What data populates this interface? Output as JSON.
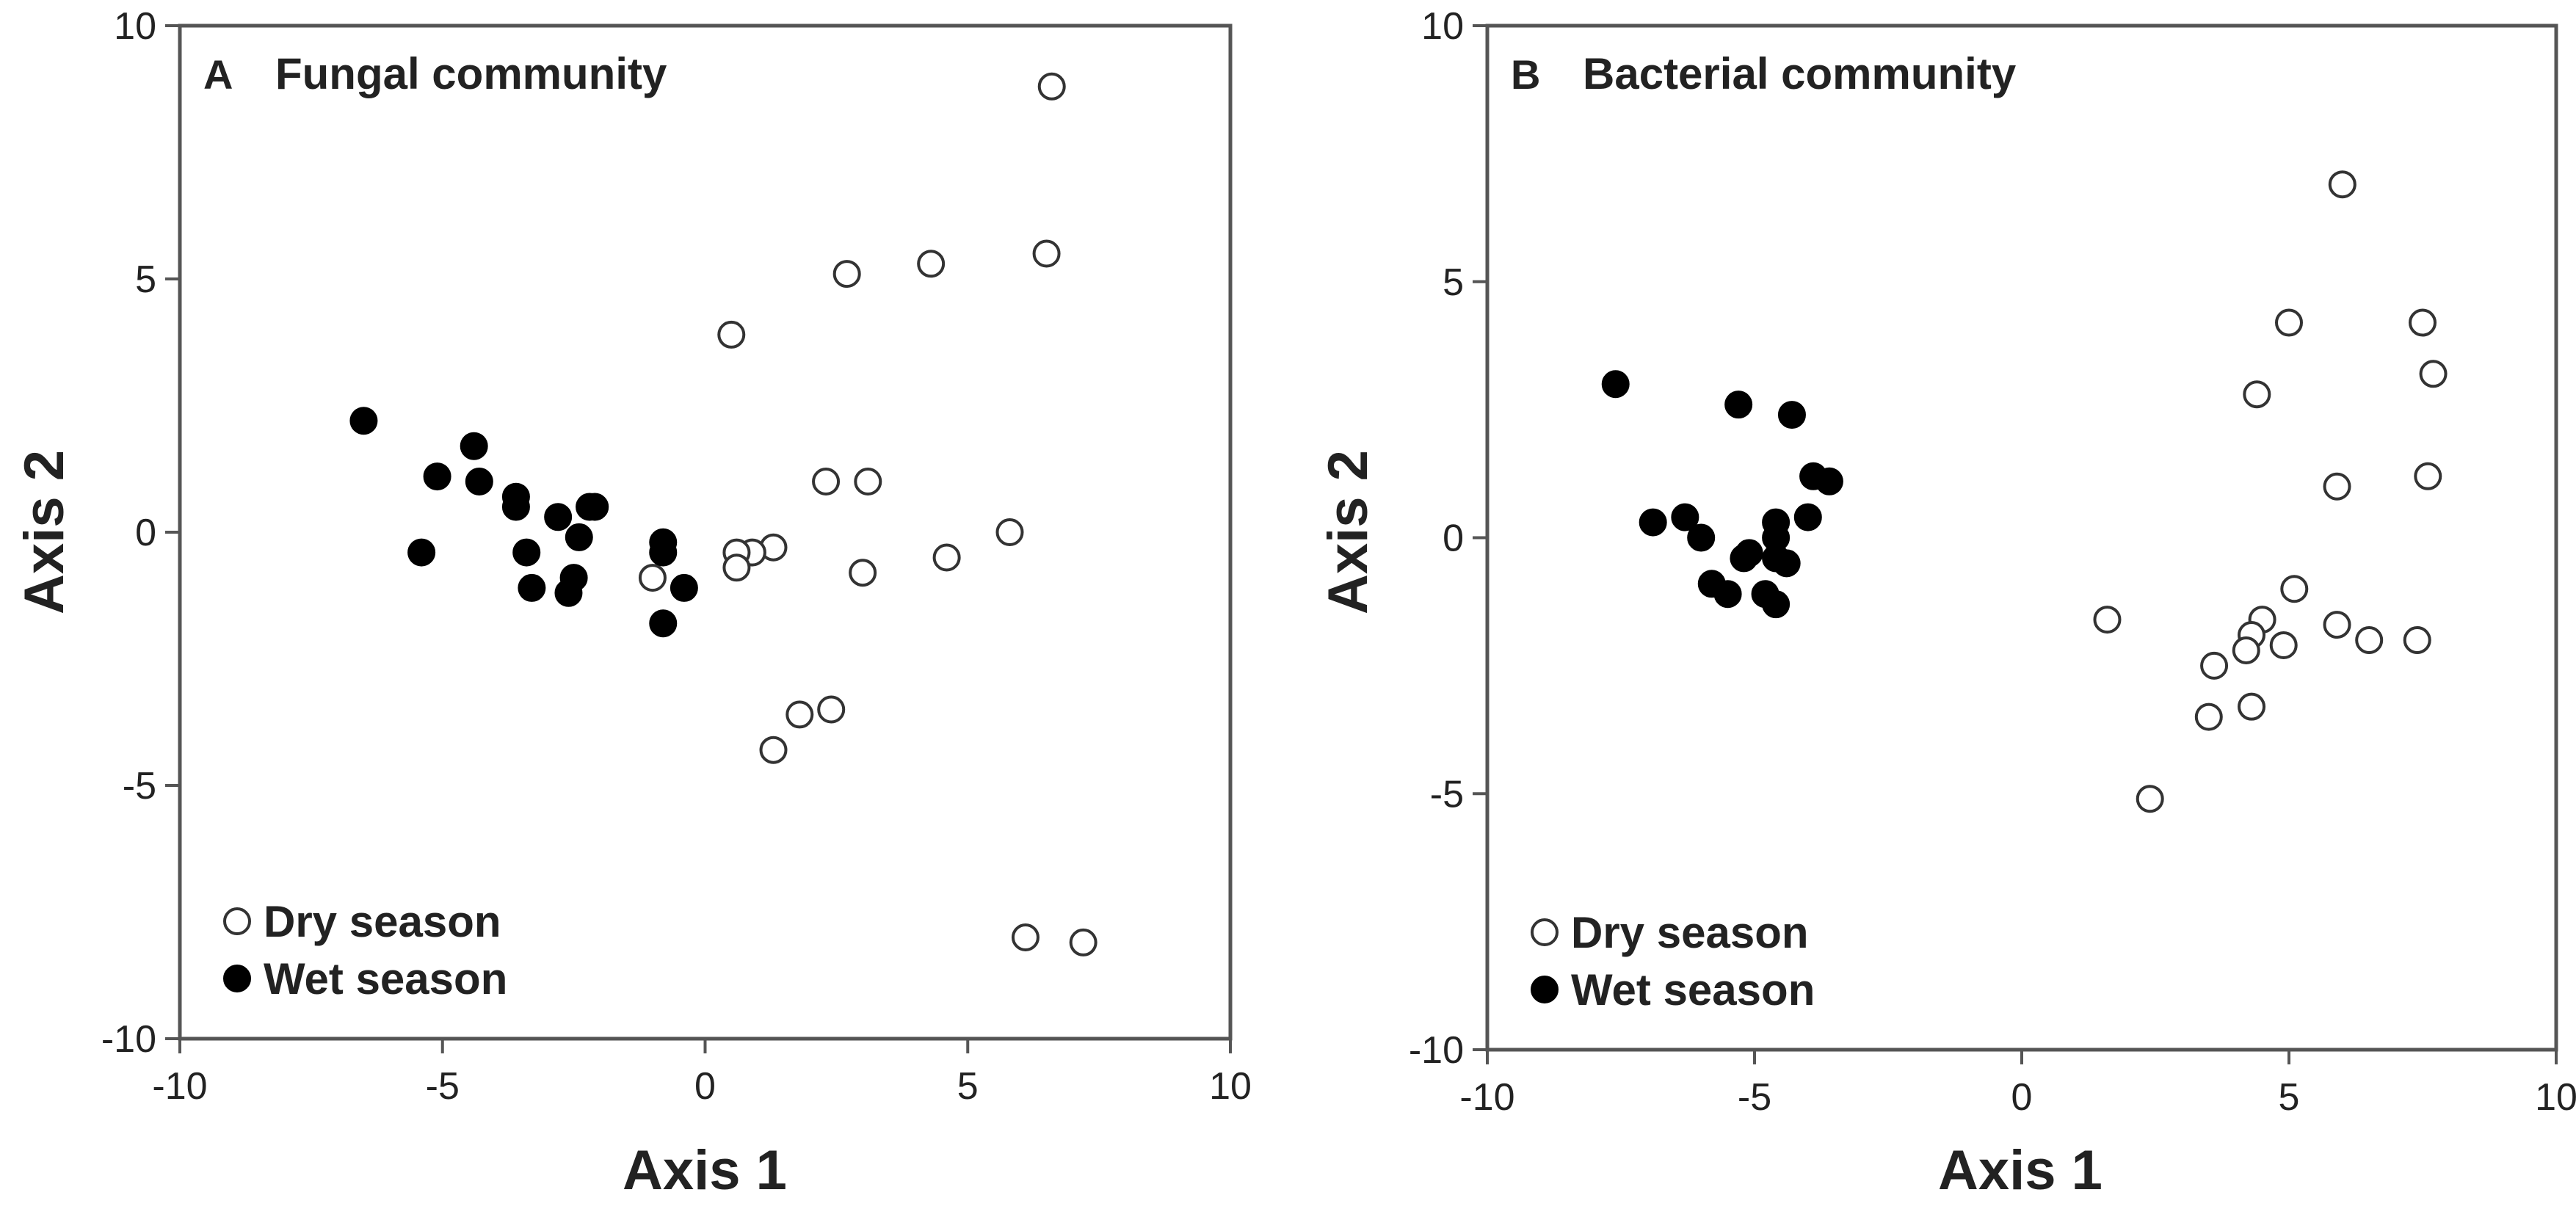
{
  "chart_data": [
    {
      "type": "scatter",
      "panel_letter": "A",
      "title": "Fungal community",
      "xlabel": "Axis 1",
      "ylabel": "Axis 2",
      "xlim": [
        -10,
        10
      ],
      "ylim": [
        -10,
        10
      ],
      "xticks": [
        -10,
        -5,
        0,
        5,
        10
      ],
      "yticks": [
        -10,
        -5,
        0,
        5,
        10
      ],
      "grid": false,
      "legend_position": "bottom-left",
      "series": [
        {
          "name": "Dry season",
          "marker": "open-circle",
          "points": [
            [
              6.6,
              8.8
            ],
            [
              6.5,
              5.5
            ],
            [
              4.3,
              5.3
            ],
            [
              2.7,
              5.1
            ],
            [
              0.5,
              3.9
            ],
            [
              2.3,
              1.0
            ],
            [
              3.1,
              1.0
            ],
            [
              5.8,
              0.0
            ],
            [
              4.6,
              -0.5
            ],
            [
              3.0,
              -0.8
            ],
            [
              1.3,
              -0.3
            ],
            [
              0.9,
              -0.4
            ],
            [
              0.6,
              -0.4
            ],
            [
              0.6,
              -0.7
            ],
            [
              -1.0,
              -0.9
            ],
            [
              1.8,
              -3.6
            ],
            [
              2.4,
              -3.5
            ],
            [
              1.3,
              -4.3
            ],
            [
              6.1,
              -8.0
            ],
            [
              7.2,
              -8.1
            ]
          ]
        },
        {
          "name": "Wet season",
          "marker": "filled-circle",
          "points": [
            [
              -6.5,
              2.2
            ],
            [
              -4.4,
              1.7
            ],
            [
              -5.1,
              1.1
            ],
            [
              -4.3,
              1.0
            ],
            [
              -3.6,
              0.7
            ],
            [
              -3.6,
              0.5
            ],
            [
              -2.1,
              0.5
            ],
            [
              -2.2,
              0.5
            ],
            [
              -2.8,
              0.3
            ],
            [
              -2.4,
              -0.1
            ],
            [
              -0.8,
              -0.2
            ],
            [
              -5.4,
              -0.4
            ],
            [
              -3.4,
              -0.4
            ],
            [
              -0.8,
              -0.4
            ],
            [
              -2.5,
              -0.9
            ],
            [
              -3.3,
              -1.1
            ],
            [
              -0.4,
              -1.1
            ],
            [
              -2.6,
              -1.2
            ],
            [
              -0.8,
              -1.8
            ]
          ]
        }
      ]
    },
    {
      "type": "scatter",
      "panel_letter": "B",
      "title": "Bacterial community",
      "xlabel": "Axis 1",
      "ylabel": "Axis 2",
      "xlim": [
        -10,
        10
      ],
      "ylim": [
        -10,
        10
      ],
      "xticks": [
        -10,
        -5,
        0,
        5,
        10
      ],
      "yticks": [
        -10,
        -5,
        0,
        5,
        10
      ],
      "grid": false,
      "legend_position": "bottom-left",
      "series": [
        {
          "name": "Dry season",
          "marker": "open-circle",
          "points": [
            [
              6.0,
              6.9
            ],
            [
              5.0,
              4.2
            ],
            [
              7.5,
              4.2
            ],
            [
              7.7,
              3.2
            ],
            [
              4.4,
              2.8
            ],
            [
              5.9,
              1.0
            ],
            [
              7.6,
              1.2
            ],
            [
              5.1,
              -1.0
            ],
            [
              1.6,
              -1.6
            ],
            [
              4.5,
              -1.6
            ],
            [
              4.3,
              -1.9
            ],
            [
              5.9,
              -1.7
            ],
            [
              6.5,
              -2.0
            ],
            [
              7.4,
              -2.0
            ],
            [
              4.2,
              -2.2
            ],
            [
              4.9,
              -2.1
            ],
            [
              3.6,
              -2.5
            ],
            [
              4.3,
              -3.3
            ],
            [
              3.5,
              -3.5
            ],
            [
              2.4,
              -5.1
            ]
          ]
        },
        {
          "name": "Wet season",
          "marker": "filled-circle",
          "points": [
            [
              -7.6,
              3.0
            ],
            [
              -5.3,
              2.6
            ],
            [
              -4.3,
              2.4
            ],
            [
              -3.9,
              1.2
            ],
            [
              -3.6,
              1.1
            ],
            [
              -6.3,
              0.4
            ],
            [
              -6.9,
              0.3
            ],
            [
              -4.0,
              0.4
            ],
            [
              -4.6,
              0.3
            ],
            [
              -4.6,
              0.0
            ],
            [
              -6.0,
              0.0
            ],
            [
              -5.1,
              -0.3
            ],
            [
              -5.2,
              -0.4
            ],
            [
              -4.6,
              -0.4
            ],
            [
              -4.4,
              -0.5
            ],
            [
              -5.8,
              -0.9
            ],
            [
              -5.5,
              -1.1
            ],
            [
              -4.8,
              -1.1
            ],
            [
              -4.6,
              -1.3
            ]
          ]
        }
      ]
    }
  ]
}
